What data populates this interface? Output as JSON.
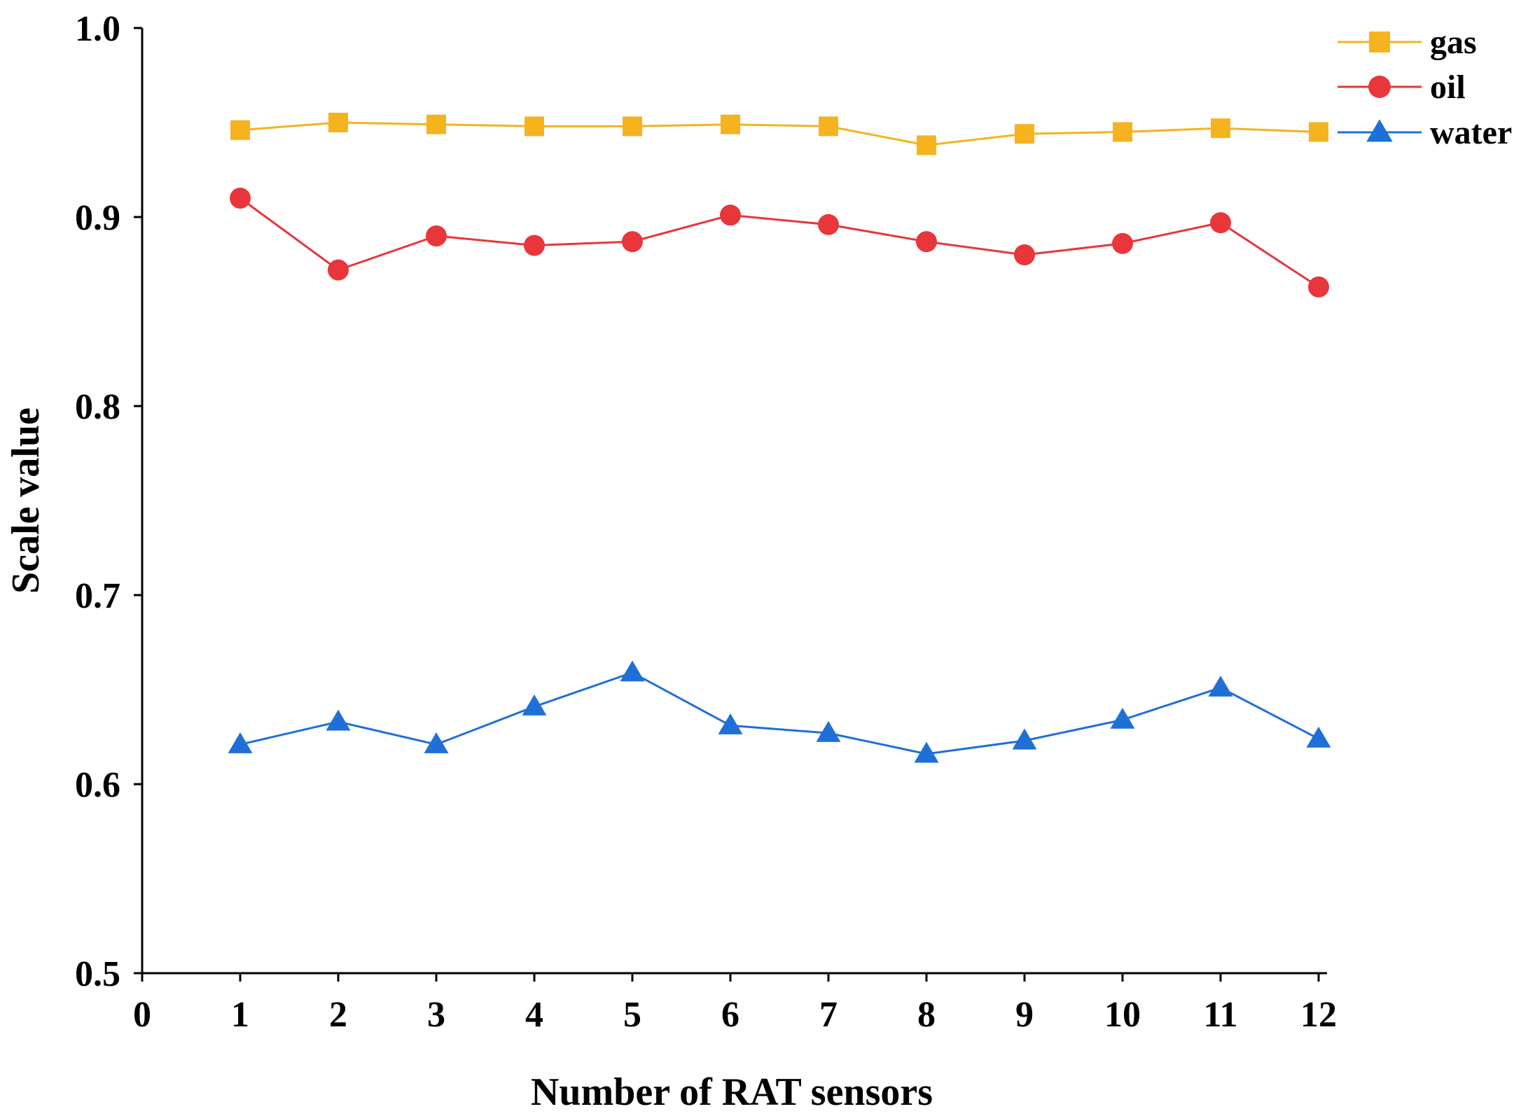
{
  "chart_data": {
    "type": "line",
    "title": "",
    "xlabel": "Number of RAT sensors",
    "ylabel": "Scale value",
    "xlim": [
      0,
      12
    ],
    "ylim": [
      0.5,
      1.0
    ],
    "x": [
      1,
      2,
      3,
      4,
      5,
      6,
      7,
      8,
      9,
      10,
      11,
      12
    ],
    "x_ticks": [
      0,
      1,
      2,
      3,
      4,
      5,
      6,
      7,
      8,
      9,
      10,
      11,
      12
    ],
    "y_ticks": [
      0.5,
      0.6,
      0.7,
      0.8,
      0.9,
      1.0
    ],
    "y_tick_labels": [
      "0.5",
      "0.6",
      "0.7",
      "0.8",
      "0.9",
      "1.0"
    ],
    "grid": false,
    "legend_position": "top-right",
    "series": [
      {
        "name": "gas",
        "color": "#F5B31E",
        "marker": "square",
        "values": [
          0.946,
          0.95,
          0.949,
          0.948,
          0.948,
          0.949,
          0.948,
          0.938,
          0.944,
          0.945,
          0.947,
          0.945
        ]
      },
      {
        "name": "oil",
        "color": "#E8363A",
        "marker": "circle",
        "values": [
          0.91,
          0.872,
          0.89,
          0.885,
          0.887,
          0.901,
          0.896,
          0.887,
          0.88,
          0.886,
          0.897,
          0.863
        ]
      },
      {
        "name": "water",
        "color": "#1F6FD9",
        "marker": "triangle",
        "values": [
          0.621,
          0.633,
          0.621,
          0.641,
          0.659,
          0.631,
          0.627,
          0.616,
          0.623,
          0.634,
          0.651,
          0.624
        ]
      }
    ]
  }
}
